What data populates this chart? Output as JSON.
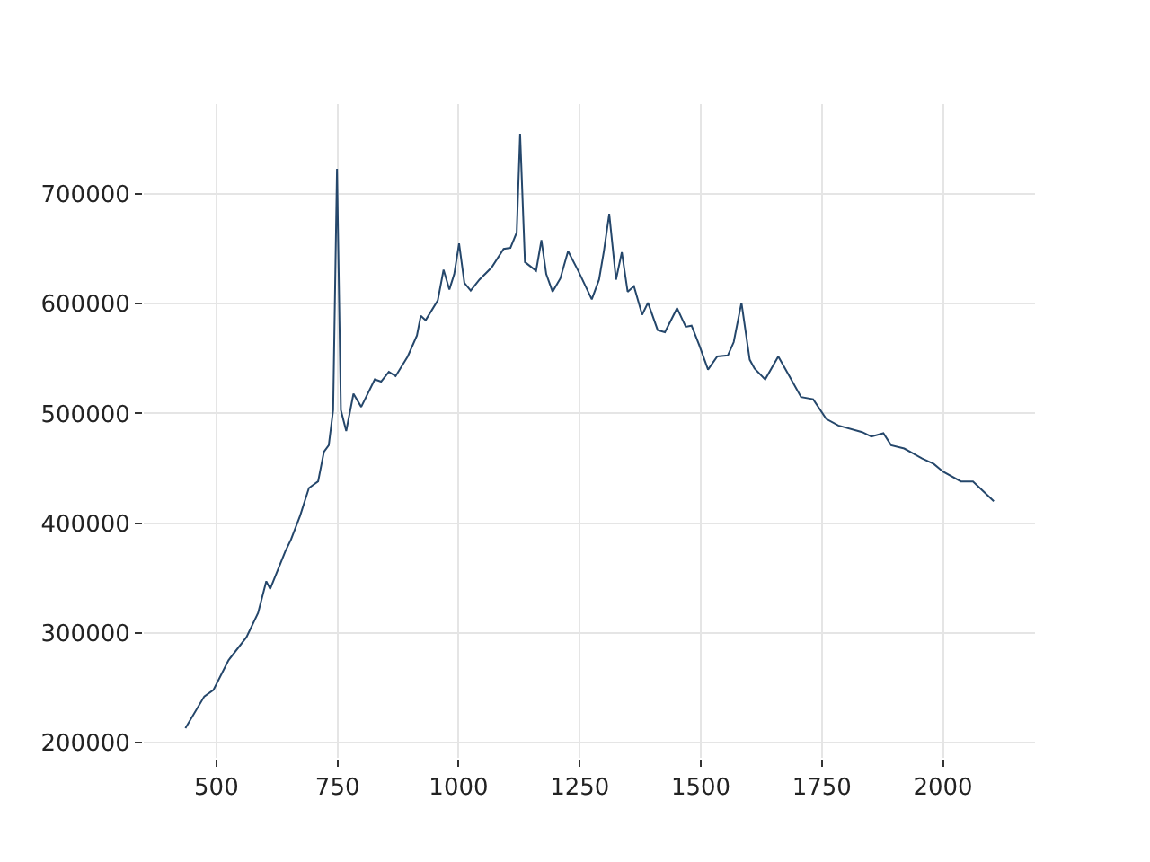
{
  "chart_data": {
    "type": "line",
    "x": [
      436,
      475,
      494,
      525,
      562,
      586,
      603,
      611,
      642,
      654,
      673,
      691,
      710,
      722,
      732,
      741,
      749,
      757,
      768,
      783,
      799,
      827,
      840,
      856,
      870,
      895,
      914,
      922,
      932,
      957,
      969,
      981,
      991,
      1001,
      1012,
      1025,
      1043,
      1068,
      1093,
      1107,
      1120,
      1127,
      1137,
      1160,
      1171,
      1181,
      1194,
      1210,
      1226,
      1247,
      1275,
      1290,
      1300,
      1311,
      1325,
      1337,
      1349,
      1362,
      1379,
      1391,
      1411,
      1426,
      1451,
      1469,
      1481,
      1497,
      1515,
      1534,
      1556,
      1568,
      1584,
      1601,
      1611,
      1633,
      1660,
      1683,
      1707,
      1732,
      1759,
      1784,
      1833,
      1852,
      1877,
      1893,
      1920,
      1957,
      1981,
      2000,
      2037,
      2062,
      2105
    ],
    "series": [
      {
        "color": "#25476b",
        "values": [
          213000,
          242000,
          248000,
          275000,
          296000,
          318000,
          347000,
          340000,
          374000,
          385000,
          407000,
          432000,
          438000,
          465000,
          471000,
          503000,
          723000,
          503000,
          484000,
          518000,
          506000,
          531000,
          529000,
          538000,
          534000,
          552000,
          571000,
          589000,
          585000,
          603000,
          631000,
          613000,
          627000,
          655000,
          619000,
          612000,
          622000,
          633000,
          650000,
          651000,
          665000,
          755000,
          638000,
          630000,
          658000,
          627000,
          611000,
          623000,
          648000,
          630000,
          604000,
          622000,
          648000,
          682000,
          622000,
          647000,
          611000,
          616000,
          590000,
          601000,
          576000,
          574000,
          596000,
          579000,
          580000,
          562000,
          540000,
          552000,
          553000,
          565000,
          601000,
          549000,
          541000,
          531000,
          552000,
          534000,
          515000,
          513000,
          495000,
          489000,
          483000,
          479000,
          482000,
          471000,
          468000,
          459000,
          454000,
          447000,
          438000,
          438000,
          420000
        ]
      }
    ],
    "xlim": [
      350,
      2190
    ],
    "ylim": [
      186000,
      782000
    ],
    "xticks": [
      500,
      750,
      1000,
      1250,
      1500,
      1750,
      2000
    ],
    "yticks": [
      200000,
      300000,
      400000,
      500000,
      600000,
      700000
    ],
    "grid": true,
    "marker": "none",
    "line_style": "solid"
  }
}
